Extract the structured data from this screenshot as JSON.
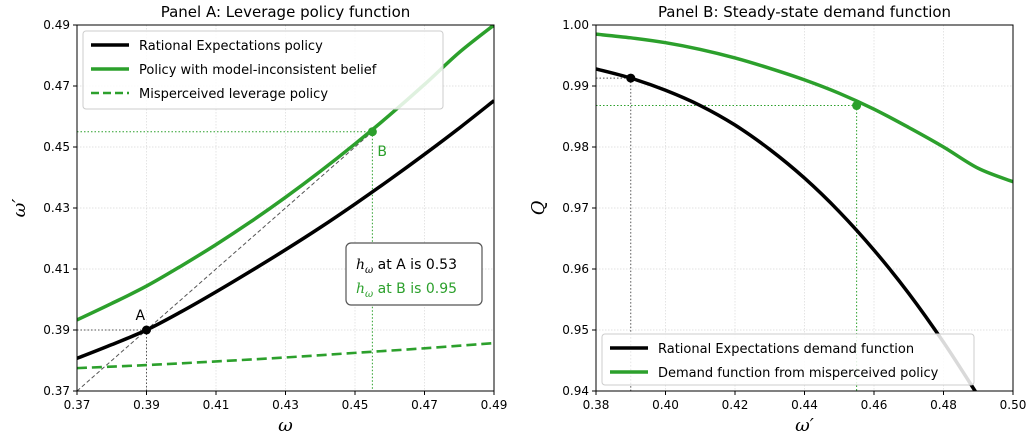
{
  "colors": {
    "black": "#000000",
    "green": "#2ca02c",
    "helper": "#555555"
  },
  "chart_data": [
    {
      "type": "line",
      "title": "Panel A: Leverage policy function",
      "xlabel": "ω",
      "ylabel": "ω′",
      "xlim": [
        0.37,
        0.49
      ],
      "ylim": [
        0.37,
        0.49
      ],
      "xticks": [
        "0.37",
        "0.39",
        "0.41",
        "0.43",
        "0.45",
        "0.47",
        "0.49"
      ],
      "yticks": [
        "0.37",
        "0.39",
        "0.41",
        "0.43",
        "0.45",
        "0.47",
        "0.49"
      ],
      "grid": true,
      "legend_position": "top-left",
      "series": [
        {
          "name": "Rational Expectations policy",
          "color": "#000000",
          "style": "solid",
          "x": [
            0.37,
            0.38,
            0.39,
            0.4,
            0.41,
            0.42,
            0.43,
            0.44,
            0.45,
            0.46,
            0.47,
            0.48,
            0.49
          ],
          "y": [
            0.3807,
            0.3852,
            0.39,
            0.396,
            0.4025,
            0.4093,
            0.4163,
            0.4236,
            0.4313,
            0.4393,
            0.4476,
            0.4562,
            0.4652
          ]
        },
        {
          "name": "Policy with model-inconsistent belief",
          "color": "#2ca02c",
          "style": "solid",
          "x": [
            0.37,
            0.38,
            0.39,
            0.4,
            0.41,
            0.42,
            0.43,
            0.44,
            0.45,
            0.46,
            0.47,
            0.48,
            0.49
          ],
          "y": [
            0.3933,
            0.3987,
            0.4044,
            0.411,
            0.418,
            0.4255,
            0.4335,
            0.442,
            0.451,
            0.4605,
            0.4705,
            0.481,
            0.49
          ]
        },
        {
          "name": "Misperceived leverage policy",
          "color": "#2ca02c",
          "style": "dashed",
          "x": [
            0.37,
            0.39,
            0.41,
            0.43,
            0.45,
            0.47,
            0.49
          ],
          "y": [
            0.3775,
            0.3785,
            0.3797,
            0.381,
            0.3825,
            0.384,
            0.3857
          ]
        }
      ],
      "reference_line": {
        "x": [
          0.37,
          0.455
        ],
        "y": [
          0.37,
          0.455
        ]
      },
      "points": [
        {
          "label": "A",
          "x": 0.39,
          "y": 0.39,
          "color": "#000000"
        },
        {
          "label": "B",
          "x": 0.455,
          "y": 0.455,
          "color": "#2ca02c"
        }
      ],
      "annotation_box": [
        {
          "prefix": "h",
          "sub": "ω",
          "text": " at A is 0.53",
          "color": "#000000"
        },
        {
          "prefix": "h",
          "sub": "ω",
          "text": " at B is 0.95",
          "color": "#2ca02c"
        }
      ]
    },
    {
      "type": "line",
      "title": "Panel B: Steady-state demand function",
      "xlabel": "ω′",
      "ylabel": "Q",
      "xlim": [
        0.38,
        0.5
      ],
      "ylim": [
        0.94,
        1.0
      ],
      "xticks": [
        "0.38",
        "0.40",
        "0.42",
        "0.44",
        "0.46",
        "0.48",
        "0.50"
      ],
      "yticks": [
        "0.94",
        "0.95",
        "0.96",
        "0.97",
        "0.98",
        "0.99",
        "1.00"
      ],
      "grid": true,
      "legend_position": "bottom-left",
      "series": [
        {
          "name": "Rational Expectations demand function",
          "color": "#000000",
          "style": "solid",
          "x": [
            0.38,
            0.39,
            0.4,
            0.41,
            0.42,
            0.43,
            0.44,
            0.45,
            0.46,
            0.47,
            0.48,
            0.49
          ],
          "y": [
            0.9928,
            0.9913,
            0.9893,
            0.9868,
            0.9836,
            0.9796,
            0.9749,
            0.9694,
            0.9631,
            0.956,
            0.948,
            0.9392
          ]
        },
        {
          "name": "Demand function from misperceived policy",
          "color": "#2ca02c",
          "style": "solid",
          "x": [
            0.38,
            0.39,
            0.4,
            0.41,
            0.42,
            0.43,
            0.44,
            0.45,
            0.46,
            0.47,
            0.48,
            0.49,
            0.5
          ],
          "y": [
            0.9985,
            0.9979,
            0.9971,
            0.996,
            0.9946,
            0.9929,
            0.991,
            0.9888,
            0.9862,
            0.9832,
            0.98,
            0.9765,
            0.9743
          ]
        }
      ],
      "points": [
        {
          "label": "",
          "x": 0.39,
          "y": 0.9913,
          "color": "#000000"
        },
        {
          "label": "",
          "x": 0.455,
          "y": 0.9868,
          "color": "#2ca02c"
        }
      ]
    }
  ]
}
